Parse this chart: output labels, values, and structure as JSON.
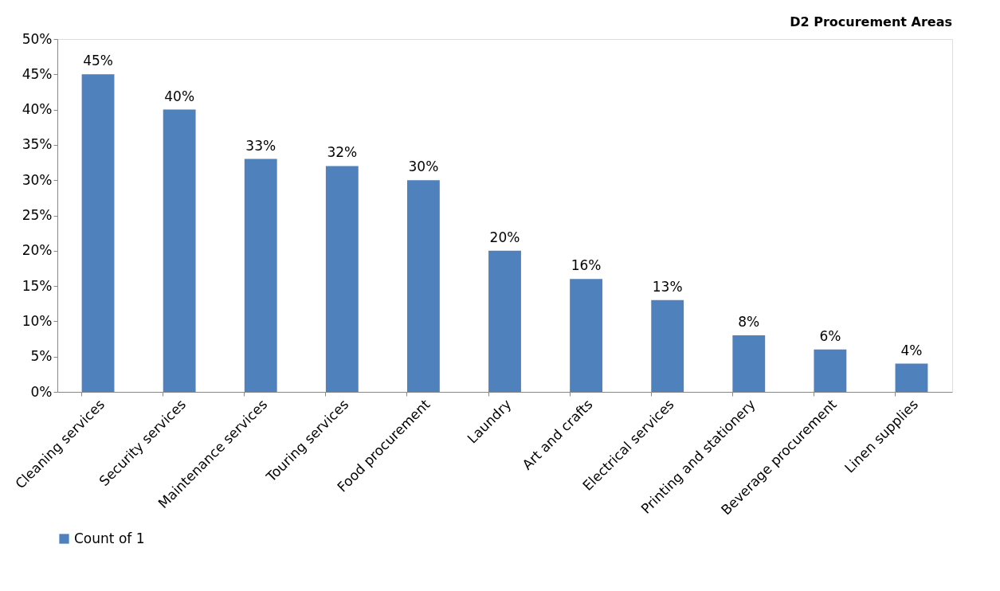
{
  "chart_data": {
    "type": "bar",
    "title": "D2 Procurement Areas",
    "categories": [
      "Cleaning services",
      "Security services",
      "Maintenance services",
      "Touring services",
      "Food procurement",
      "Laundry",
      "Art and crafts",
      "Electrical services",
      "Printing and stationery",
      "Beverage procurement",
      "Linen supplies"
    ],
    "series": [
      {
        "name": "Count of 1",
        "color": "#4f81bd",
        "values": [
          45,
          40,
          33,
          32,
          30,
          20,
          16,
          13,
          8,
          6,
          4
        ],
        "value_labels": [
          "45%",
          "40%",
          "33%",
          "32%",
          "30%",
          "20%",
          "16%",
          "13%",
          "8%",
          "6%",
          "4%"
        ]
      }
    ],
    "ylim": [
      0,
      50
    ],
    "yticks": [
      {
        "value": 0,
        "label": "0%"
      },
      {
        "value": 5,
        "label": "5%"
      },
      {
        "value": 10,
        "label": "10%"
      },
      {
        "value": 15,
        "label": "15%"
      },
      {
        "value": 20,
        "label": "20%"
      },
      {
        "value": 25,
        "label": "25%"
      },
      {
        "value": 30,
        "label": "30%"
      },
      {
        "value": 35,
        "label": "35%"
      },
      {
        "value": 40,
        "label": "40%"
      },
      {
        "value": 45,
        "label": "45%"
      },
      {
        "value": 50,
        "label": "50%"
      }
    ],
    "grid": false,
    "legend": "bottom"
  }
}
